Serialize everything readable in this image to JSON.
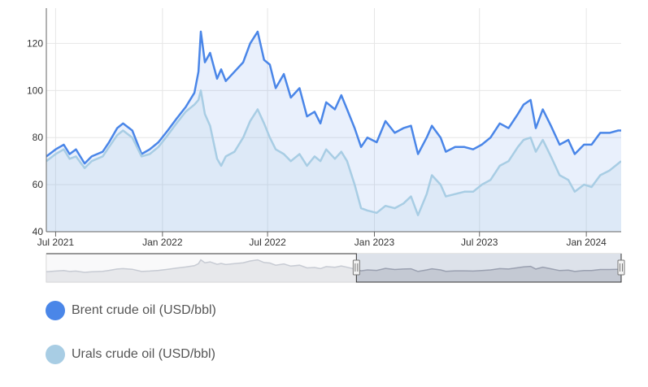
{
  "chart_data": {
    "type": "area",
    "title": "",
    "xlabel": "",
    "ylabel": "",
    "ylim": [
      40,
      135
    ],
    "y_ticks": [
      40,
      60,
      80,
      100,
      120
    ],
    "x_ticks": [
      {
        "date": "2021-07-01",
        "label": "Jul 2021"
      },
      {
        "date": "2022-01-01",
        "label": "Jan 2022"
      },
      {
        "date": "2022-07-01",
        "label": "Jul 2022"
      },
      {
        "date": "2023-01-01",
        "label": "Jan 2023"
      },
      {
        "date": "2023-07-01",
        "label": "Jul 2023"
      },
      {
        "date": "2024-01-01",
        "label": "Jan 2024"
      }
    ],
    "x_range": [
      "2021-06-15",
      "2024-03-01"
    ],
    "grid": true,
    "legend_position": "bottom-left",
    "series": [
      {
        "name": "Brent crude oil (USD/bbl)",
        "color": "#4a86e8",
        "points": [
          [
            "2021-06-15",
            72
          ],
          [
            "2021-07-01",
            75
          ],
          [
            "2021-07-15",
            77
          ],
          [
            "2021-07-25",
            73
          ],
          [
            "2021-08-05",
            75
          ],
          [
            "2021-08-20",
            69
          ],
          [
            "2021-09-01",
            72
          ],
          [
            "2021-09-20",
            74
          ],
          [
            "2021-10-01",
            78
          ],
          [
            "2021-10-15",
            84
          ],
          [
            "2021-10-25",
            86
          ],
          [
            "2021-11-10",
            83
          ],
          [
            "2021-11-26",
            73
          ],
          [
            "2021-12-10",
            75
          ],
          [
            "2021-12-25",
            78
          ],
          [
            "2022-01-10",
            83
          ],
          [
            "2022-01-25",
            88
          ],
          [
            "2022-02-10",
            93
          ],
          [
            "2022-02-25",
            99
          ],
          [
            "2022-03-04",
            108
          ],
          [
            "2022-03-08",
            125
          ],
          [
            "2022-03-15",
            112
          ],
          [
            "2022-03-24",
            116
          ],
          [
            "2022-04-05",
            105
          ],
          [
            "2022-04-12",
            109
          ],
          [
            "2022-04-20",
            104
          ],
          [
            "2022-05-05",
            108
          ],
          [
            "2022-05-20",
            112
          ],
          [
            "2022-06-01",
            120
          ],
          [
            "2022-06-14",
            125
          ],
          [
            "2022-06-25",
            113
          ],
          [
            "2022-07-05",
            111
          ],
          [
            "2022-07-15",
            101
          ],
          [
            "2022-07-29",
            107
          ],
          [
            "2022-08-10",
            97
          ],
          [
            "2022-08-25",
            101
          ],
          [
            "2022-09-07",
            89
          ],
          [
            "2022-09-20",
            91
          ],
          [
            "2022-09-30",
            86
          ],
          [
            "2022-10-10",
            95
          ],
          [
            "2022-10-25",
            92
          ],
          [
            "2022-11-05",
            98
          ],
          [
            "2022-11-15",
            92
          ],
          [
            "2022-11-28",
            84
          ],
          [
            "2022-12-09",
            76
          ],
          [
            "2022-12-20",
            80
          ],
          [
            "2023-01-05",
            78
          ],
          [
            "2023-01-20",
            87
          ],
          [
            "2023-02-05",
            82
          ],
          [
            "2023-02-20",
            84
          ],
          [
            "2023-03-05",
            85
          ],
          [
            "2023-03-17",
            73
          ],
          [
            "2023-04-01",
            80
          ],
          [
            "2023-04-10",
            85
          ],
          [
            "2023-04-25",
            80
          ],
          [
            "2023-05-04",
            74
          ],
          [
            "2023-05-20",
            76
          ],
          [
            "2023-06-05",
            76
          ],
          [
            "2023-06-20",
            75
          ],
          [
            "2023-07-05",
            77
          ],
          [
            "2023-07-20",
            80
          ],
          [
            "2023-08-05",
            86
          ],
          [
            "2023-08-20",
            84
          ],
          [
            "2023-09-05",
            90
          ],
          [
            "2023-09-15",
            94
          ],
          [
            "2023-09-27",
            96
          ],
          [
            "2023-10-06",
            84
          ],
          [
            "2023-10-18",
            92
          ],
          [
            "2023-11-01",
            85
          ],
          [
            "2023-11-16",
            77
          ],
          [
            "2023-12-01",
            79
          ],
          [
            "2023-12-12",
            73
          ],
          [
            "2023-12-28",
            77
          ],
          [
            "2024-01-10",
            77
          ],
          [
            "2024-01-25",
            82
          ],
          [
            "2024-02-10",
            82
          ],
          [
            "2024-02-25",
            83
          ],
          [
            "2024-03-01",
            83
          ]
        ]
      },
      {
        "name": "Urals crude oil (USD/bbl)",
        "color": "#a8cde4",
        "points": [
          [
            "2021-06-15",
            70
          ],
          [
            "2021-07-01",
            73
          ],
          [
            "2021-07-15",
            75
          ],
          [
            "2021-07-25",
            71
          ],
          [
            "2021-08-05",
            72
          ],
          [
            "2021-08-20",
            67
          ],
          [
            "2021-09-01",
            70
          ],
          [
            "2021-09-20",
            72
          ],
          [
            "2021-10-01",
            76
          ],
          [
            "2021-10-15",
            81
          ],
          [
            "2021-10-25",
            83
          ],
          [
            "2021-11-10",
            80
          ],
          [
            "2021-11-26",
            72
          ],
          [
            "2021-12-10",
            73
          ],
          [
            "2021-12-25",
            76
          ],
          [
            "2022-01-10",
            81
          ],
          [
            "2022-01-25",
            86
          ],
          [
            "2022-02-10",
            91
          ],
          [
            "2022-02-25",
            94
          ],
          [
            "2022-03-04",
            96
          ],
          [
            "2022-03-08",
            100
          ],
          [
            "2022-03-15",
            90
          ],
          [
            "2022-03-24",
            85
          ],
          [
            "2022-04-05",
            71
          ],
          [
            "2022-04-12",
            68
          ],
          [
            "2022-04-20",
            72
          ],
          [
            "2022-05-05",
            74
          ],
          [
            "2022-05-20",
            80
          ],
          [
            "2022-06-01",
            87
          ],
          [
            "2022-06-14",
            92
          ],
          [
            "2022-06-25",
            86
          ],
          [
            "2022-07-05",
            80
          ],
          [
            "2022-07-15",
            75
          ],
          [
            "2022-07-29",
            73
          ],
          [
            "2022-08-10",
            70
          ],
          [
            "2022-08-25",
            73
          ],
          [
            "2022-09-07",
            68
          ],
          [
            "2022-09-20",
            72
          ],
          [
            "2022-09-30",
            70
          ],
          [
            "2022-10-10",
            75
          ],
          [
            "2022-10-25",
            71
          ],
          [
            "2022-11-05",
            74
          ],
          [
            "2022-11-15",
            70
          ],
          [
            "2022-11-28",
            60
          ],
          [
            "2022-12-09",
            50
          ],
          [
            "2022-12-20",
            49
          ],
          [
            "2023-01-05",
            48
          ],
          [
            "2023-01-20",
            51
          ],
          [
            "2023-02-05",
            50
          ],
          [
            "2023-02-20",
            52
          ],
          [
            "2023-03-05",
            55
          ],
          [
            "2023-03-17",
            47
          ],
          [
            "2023-04-01",
            56
          ],
          [
            "2023-04-10",
            64
          ],
          [
            "2023-04-25",
            60
          ],
          [
            "2023-05-04",
            55
          ],
          [
            "2023-05-20",
            56
          ],
          [
            "2023-06-05",
            57
          ],
          [
            "2023-06-20",
            57
          ],
          [
            "2023-07-05",
            60
          ],
          [
            "2023-07-20",
            62
          ],
          [
            "2023-08-05",
            68
          ],
          [
            "2023-08-20",
            70
          ],
          [
            "2023-09-05",
            76
          ],
          [
            "2023-09-15",
            79
          ],
          [
            "2023-09-27",
            80
          ],
          [
            "2023-10-06",
            74
          ],
          [
            "2023-10-18",
            79
          ],
          [
            "2023-11-01",
            72
          ],
          [
            "2023-11-16",
            64
          ],
          [
            "2023-12-01",
            62
          ],
          [
            "2023-12-12",
            57
          ],
          [
            "2023-12-28",
            60
          ],
          [
            "2024-01-10",
            59
          ],
          [
            "2024-01-25",
            64
          ],
          [
            "2024-02-10",
            66
          ],
          [
            "2024-02-25",
            69
          ],
          [
            "2024-03-01",
            70
          ]
        ]
      }
    ],
    "navigator": {
      "selected_range": [
        "2022-12-01",
        "2024-03-01"
      ]
    }
  }
}
